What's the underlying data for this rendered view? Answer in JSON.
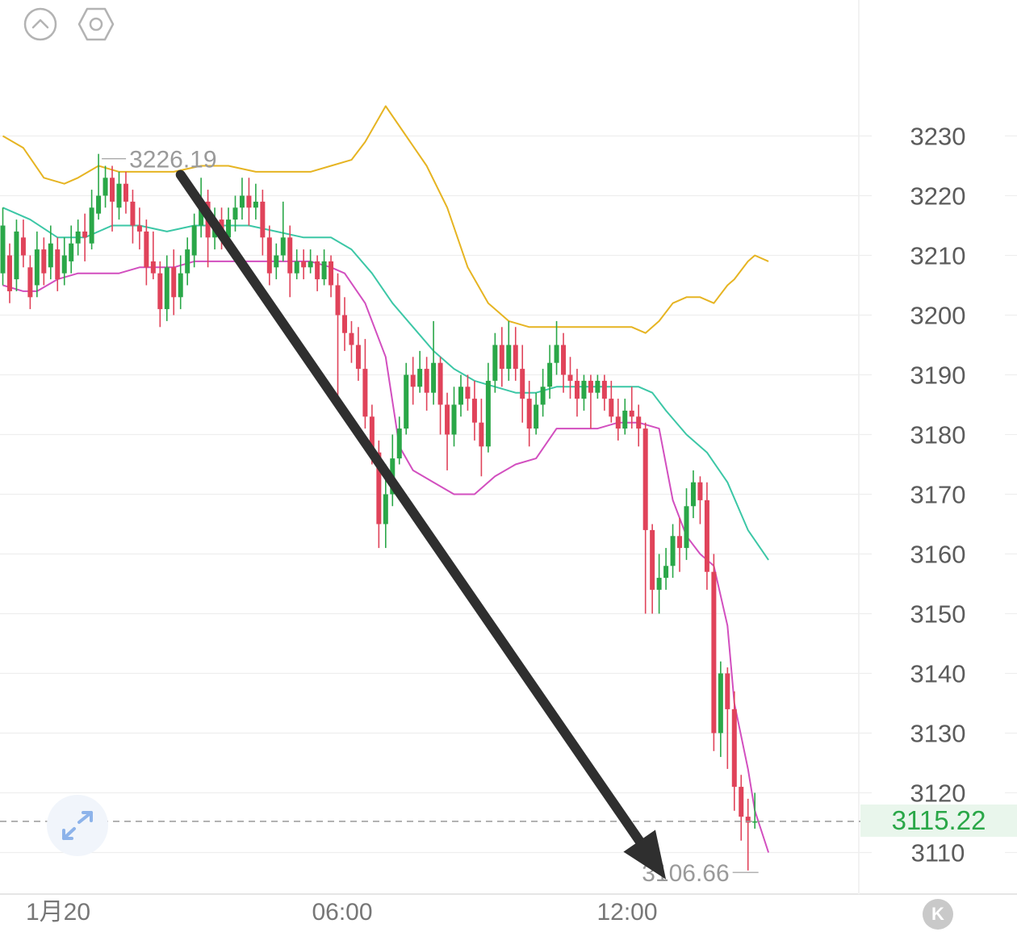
{
  "toolbar": {
    "collapse_icon": "chevron-up-circle-icon",
    "settings_icon": "hexagon-settings-icon"
  },
  "expand_icon": "expand-arrows-icon",
  "kline_badge": "K",
  "current_price": "3115.22",
  "colors": {
    "up": "#2aa748",
    "down": "#e0435a",
    "boll_upper": "#e6b422",
    "boll_mid": "#3cc7a6",
    "boll_lower": "#d24fbf",
    "arrow": "#2f2f2f",
    "grid": "#eeeeee"
  },
  "chart_data": {
    "type": "candlestick",
    "y_ticks": [
      3230,
      3220,
      3210,
      3200,
      3190,
      3180,
      3170,
      3160,
      3150,
      3140,
      3130,
      3120,
      3110
    ],
    "y_range": [
      3103,
      3250
    ],
    "x_ticks": [
      "1月20",
      "06:00",
      "12:00"
    ],
    "annotations": {
      "high": {
        "label": "3226.19",
        "value": 3226.19
      },
      "low": {
        "label": "3106.66",
        "value": 3106.66
      },
      "current": {
        "label": "3115.22",
        "value": 3115.22
      }
    },
    "candles": [
      [
        3207,
        3215,
        3205,
        3218
      ],
      [
        3210,
        3204,
        3202,
        3212
      ],
      [
        3206,
        3214,
        3204,
        3216
      ],
      [
        3213,
        3210,
        3208,
        3216
      ],
      [
        3208,
        3203,
        3201,
        3210
      ],
      [
        3205,
        3211,
        3203,
        3214
      ],
      [
        3211,
        3207,
        3205,
        3213
      ],
      [
        3208,
        3212,
        3206,
        3215
      ],
      [
        3211,
        3206,
        3204,
        3213
      ],
      [
        3207,
        3210,
        3205,
        3213
      ],
      [
        3209,
        3212,
        3207,
        3215
      ],
      [
        3212,
        3214,
        3210,
        3216
      ],
      [
        3214,
        3213,
        3209,
        3217
      ],
      [
        3212,
        3218,
        3211,
        3221
      ],
      [
        3217,
        3220,
        3216,
        3227
      ],
      [
        3220,
        3223,
        3218,
        3225
      ],
      [
        3223,
        3219,
        3214,
        3225
      ],
      [
        3218,
        3222,
        3216,
        3224
      ],
      [
        3222,
        3219,
        3217,
        3224
      ],
      [
        3219,
        3215,
        3212,
        3221
      ],
      [
        3215,
        3214,
        3211,
        3218
      ],
      [
        3214,
        3208,
        3205,
        3216
      ],
      [
        3209,
        3207,
        3206,
        3214
      ],
      [
        3207,
        3201,
        3198,
        3209
      ],
      [
        3201,
        3208,
        3199,
        3210
      ],
      [
        3208,
        3203,
        3200,
        3211
      ],
      [
        3203,
        3207,
        3201,
        3210
      ],
      [
        3207,
        3211,
        3205,
        3213
      ],
      [
        3210,
        3215,
        3208,
        3217
      ],
      [
        3215,
        3219,
        3213,
        3223
      ],
      [
        3219,
        3213,
        3208,
        3221
      ],
      [
        3213,
        3216,
        3211,
        3218
      ],
      [
        3216,
        3213,
        3211,
        3218
      ],
      [
        3213,
        3216,
        3212,
        3218
      ],
      [
        3216,
        3218,
        3214,
        3220
      ],
      [
        3218,
        3220,
        3216,
        3223
      ],
      [
        3220,
        3218,
        3215,
        3223
      ],
      [
        3218,
        3219,
        3216,
        3222
      ],
      [
        3219,
        3213,
        3210,
        3221
      ],
      [
        3213,
        3207,
        3205,
        3215
      ],
      [
        3208,
        3210,
        3206,
        3212
      ],
      [
        3210,
        3213,
        3209,
        3219
      ],
      [
        3213,
        3207,
        3203,
        3215
      ],
      [
        3207,
        3209,
        3206,
        3211
      ],
      [
        3209,
        3208,
        3206,
        3211
      ],
      [
        3208,
        3209,
        3207,
        3211
      ],
      [
        3209,
        3206,
        3204,
        3210
      ],
      [
        3206,
        3209,
        3205,
        3211
      ],
      [
        3209,
        3205,
        3203,
        3210
      ],
      [
        3205,
        3200,
        3185,
        3207
      ],
      [
        3200,
        3197,
        3194,
        3203
      ],
      [
        3197,
        3195,
        3192,
        3199
      ],
      [
        3195,
        3191,
        3189,
        3198
      ],
      [
        3191,
        3183,
        3181,
        3196
      ],
      [
        3183,
        3177,
        3175,
        3185
      ],
      [
        3177,
        3165,
        3161,
        3179
      ],
      [
        3165,
        3170,
        3161,
        3175
      ],
      [
        3170,
        3176,
        3168,
        3180
      ],
      [
        3176,
        3181,
        3175,
        3183
      ],
      [
        3181,
        3190,
        3180,
        3192
      ],
      [
        3190,
        3188,
        3185,
        3193
      ],
      [
        3188,
        3191,
        3187,
        3194
      ],
      [
        3191,
        3187,
        3184,
        3193
      ],
      [
        3187,
        3192,
        3185,
        3199
      ],
      [
        3192,
        3185,
        3180,
        3193
      ],
      [
        3185,
        3180,
        3174,
        3187
      ],
      [
        3180,
        3185,
        3178,
        3188
      ],
      [
        3185,
        3188,
        3183,
        3190
      ],
      [
        3188,
        3186,
        3184,
        3190
      ],
      [
        3186,
        3182,
        3179,
        3189
      ],
      [
        3182,
        3178,
        3173,
        3186
      ],
      [
        3178,
        3189,
        3177,
        3192
      ],
      [
        3189,
        3195,
        3187,
        3197
      ],
      [
        3195,
        3191,
        3188,
        3198
      ],
      [
        3191,
        3195,
        3189,
        3199
      ],
      [
        3195,
        3191,
        3189,
        3198
      ],
      [
        3191,
        3186,
        3182,
        3195
      ],
      [
        3186,
        3181,
        3178,
        3189
      ],
      [
        3181,
        3185,
        3180,
        3187
      ],
      [
        3185,
        3188,
        3183,
        3191
      ],
      [
        3188,
        3192,
        3186,
        3195
      ],
      [
        3192,
        3195,
        3190,
        3199
      ],
      [
        3195,
        3190,
        3187,
        3197
      ],
      [
        3190,
        3189,
        3186,
        3193
      ],
      [
        3189,
        3186,
        3183,
        3191
      ],
      [
        3186,
        3189,
        3184,
        3190
      ],
      [
        3189,
        3187,
        3181,
        3190
      ],
      [
        3187,
        3189,
        3186,
        3190
      ],
      [
        3189,
        3186,
        3184,
        3190
      ],
      [
        3186,
        3183,
        3182,
        3189
      ],
      [
        3183,
        3181,
        3179,
        3186
      ],
      [
        3181,
        3184,
        3180,
        3186
      ],
      [
        3184,
        3183,
        3181,
        3188
      ],
      [
        3183,
        3181,
        3178,
        3185
      ],
      [
        3181,
        3164,
        3150,
        3182
      ],
      [
        3164,
        3154,
        3150,
        3165
      ],
      [
        3154,
        3156,
        3150,
        3160
      ],
      [
        3156,
        3158,
        3154,
        3161
      ],
      [
        3158,
        3163,
        3156,
        3165
      ],
      [
        3163,
        3161,
        3157,
        3166
      ],
      [
        3161,
        3168,
        3159,
        3171
      ],
      [
        3168,
        3172,
        3166,
        3174
      ],
      [
        3172,
        3169,
        3165,
        3173
      ],
      [
        3169,
        3157,
        3154,
        3172
      ],
      [
        3157,
        3130,
        3127,
        3160
      ],
      [
        3130,
        3140,
        3126,
        3142
      ],
      [
        3140,
        3134,
        3124,
        3141
      ],
      [
        3134,
        3121,
        3117,
        3137
      ],
      [
        3121,
        3116,
        3112,
        3123
      ],
      [
        3116,
        3115,
        3107,
        3119
      ],
      [
        3115,
        3115.22,
        3114,
        3120
      ]
    ],
    "bollinger": {
      "upper": [
        [
          0,
          3230
        ],
        [
          3,
          3228
        ],
        [
          6,
          3223
        ],
        [
          9,
          3222
        ],
        [
          11,
          3223
        ],
        [
          14,
          3225
        ],
        [
          17,
          3224
        ],
        [
          21,
          3224
        ],
        [
          25,
          3224
        ],
        [
          29,
          3225
        ],
        [
          33,
          3225
        ],
        [
          37,
          3224
        ],
        [
          41,
          3224
        ],
        [
          45,
          3224
        ],
        [
          48,
          3225
        ],
        [
          51,
          3226
        ],
        [
          53,
          3229
        ],
        [
          56,
          3235
        ],
        [
          59,
          3230
        ],
        [
          62,
          3225
        ],
        [
          65,
          3218
        ],
        [
          68,
          3208
        ],
        [
          71,
          3202
        ],
        [
          74,
          3199
        ],
        [
          77,
          3198
        ],
        [
          80,
          3198
        ],
        [
          83,
          3198
        ],
        [
          86,
          3198
        ],
        [
          89,
          3198
        ],
        [
          92,
          3198
        ],
        [
          94,
          3197
        ],
        [
          96,
          3199
        ],
        [
          98,
          3202
        ],
        [
          100,
          3203
        ],
        [
          102,
          3203
        ],
        [
          104,
          3202
        ],
        [
          106,
          3205
        ],
        [
          107,
          3206
        ],
        [
          109,
          3209
        ],
        [
          110,
          3210
        ],
        [
          112,
          3209
        ]
      ],
      "mid": [
        [
          0,
          3218
        ],
        [
          4,
          3216
        ],
        [
          8,
          3213
        ],
        [
          12,
          3213
        ],
        [
          16,
          3215
        ],
        [
          20,
          3215
        ],
        [
          24,
          3214
        ],
        [
          28,
          3215
        ],
        [
          32,
          3215
        ],
        [
          36,
          3215
        ],
        [
          40,
          3214
        ],
        [
          44,
          3213
        ],
        [
          48,
          3213
        ],
        [
          51,
          3211
        ],
        [
          54,
          3207
        ],
        [
          57,
          3202
        ],
        [
          60,
          3198
        ],
        [
          63,
          3194
        ],
        [
          66,
          3191
        ],
        [
          69,
          3189
        ],
        [
          72,
          3188
        ],
        [
          75,
          3187
        ],
        [
          78,
          3187
        ],
        [
          81,
          3188
        ],
        [
          84,
          3188
        ],
        [
          87,
          3188
        ],
        [
          90,
          3188
        ],
        [
          93,
          3188
        ],
        [
          95,
          3187
        ],
        [
          97,
          3184
        ],
        [
          100,
          3180
        ],
        [
          103,
          3177
        ],
        [
          106,
          3172
        ],
        [
          109,
          3164
        ],
        [
          112,
          3159
        ]
      ],
      "lower": [
        [
          0,
          3205
        ],
        [
          3,
          3204
        ],
        [
          5,
          3204
        ],
        [
          8,
          3206
        ],
        [
          11,
          3207
        ],
        [
          14,
          3207
        ],
        [
          17,
          3207
        ],
        [
          20,
          3208
        ],
        [
          23,
          3208
        ],
        [
          25,
          3208
        ],
        [
          28,
          3209
        ],
        [
          31,
          3209
        ],
        [
          34,
          3209
        ],
        [
          37,
          3209
        ],
        [
          41,
          3209
        ],
        [
          45,
          3209
        ],
        [
          48,
          3208
        ],
        [
          50,
          3207
        ],
        [
          53,
          3202
        ],
        [
          56,
          3193
        ],
        [
          58,
          3178
        ],
        [
          60,
          3174
        ],
        [
          63,
          3172
        ],
        [
          66,
          3170
        ],
        [
          69,
          3170
        ],
        [
          72,
          3173
        ],
        [
          75,
          3175
        ],
        [
          78,
          3176
        ],
        [
          81,
          3181
        ],
        [
          84,
          3181
        ],
        [
          87,
          3181
        ],
        [
          90,
          3182
        ],
        [
          93,
          3182
        ],
        [
          96,
          3181
        ],
        [
          98,
          3169
        ],
        [
          100,
          3163
        ],
        [
          102,
          3160
        ],
        [
          104,
          3158
        ],
        [
          106,
          3148
        ],
        [
          107,
          3135
        ],
        [
          109,
          3124
        ],
        [
          110,
          3117
        ],
        [
          112,
          3110
        ]
      ]
    },
    "trend_arrow": {
      "from": {
        "index": 26,
        "value": 3223.5
      },
      "to": {
        "index": 97,
        "value": 3105.5
      }
    }
  }
}
